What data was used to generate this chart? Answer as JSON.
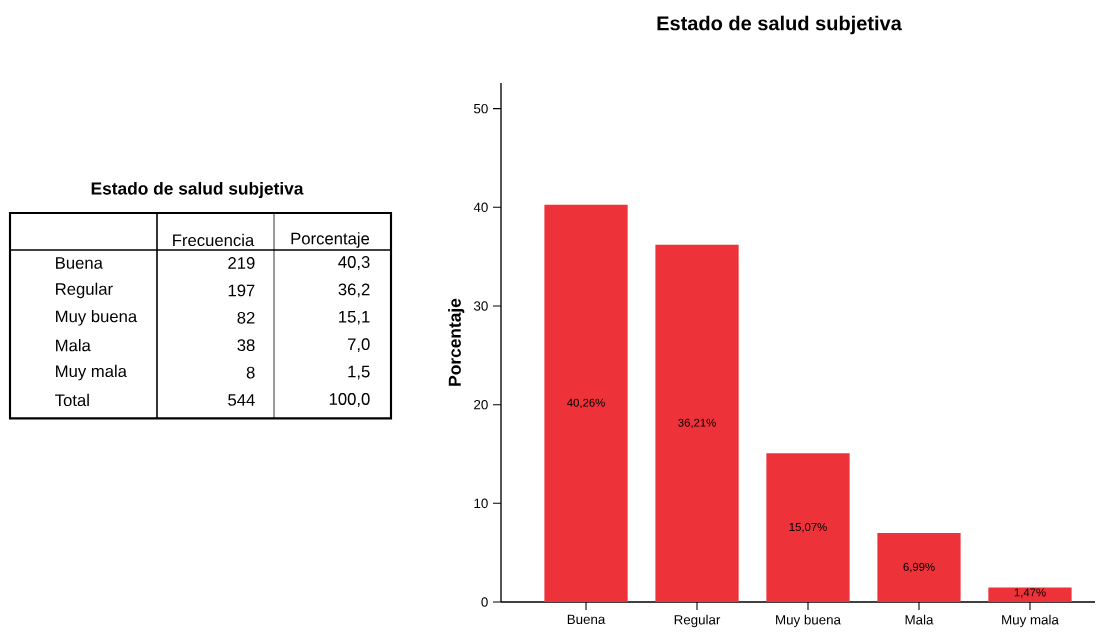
{
  "chart_data": [
    {
      "type": "other",
      "title": "Estado de salud subjetiva",
      "annotations": [
        "Frecuencia",
        "Porcentaje",
        "Buena",
        "219",
        "40,3",
        "Regular",
        "197",
        "36,2",
        "Muy buena",
        "82",
        "15,1",
        "Mala",
        "38",
        "7,0",
        "Muy mala",
        "8",
        "1,5",
        "Total",
        "544",
        "100,0"
      ]
    },
    {
      "type": "bar",
      "title": "Estado de salud subjetiva",
      "ylabel": "Porcentaje",
      "categories": [
        "Buena",
        "Regular",
        "Muy buena",
        "Mala",
        "Muy mala"
      ],
      "values": [
        40.26,
        36.21,
        15.07,
        6.99,
        1.47
      ],
      "value_labels": [
        "40,26%",
        "36,21%",
        "15,07%",
        "6,99%",
        "1,47%"
      ],
      "color": "#ee3239",
      "ylim": [
        0,
        52.6
      ],
      "yticks": [
        0,
        10,
        20,
        30,
        40,
        50
      ]
    }
  ]
}
